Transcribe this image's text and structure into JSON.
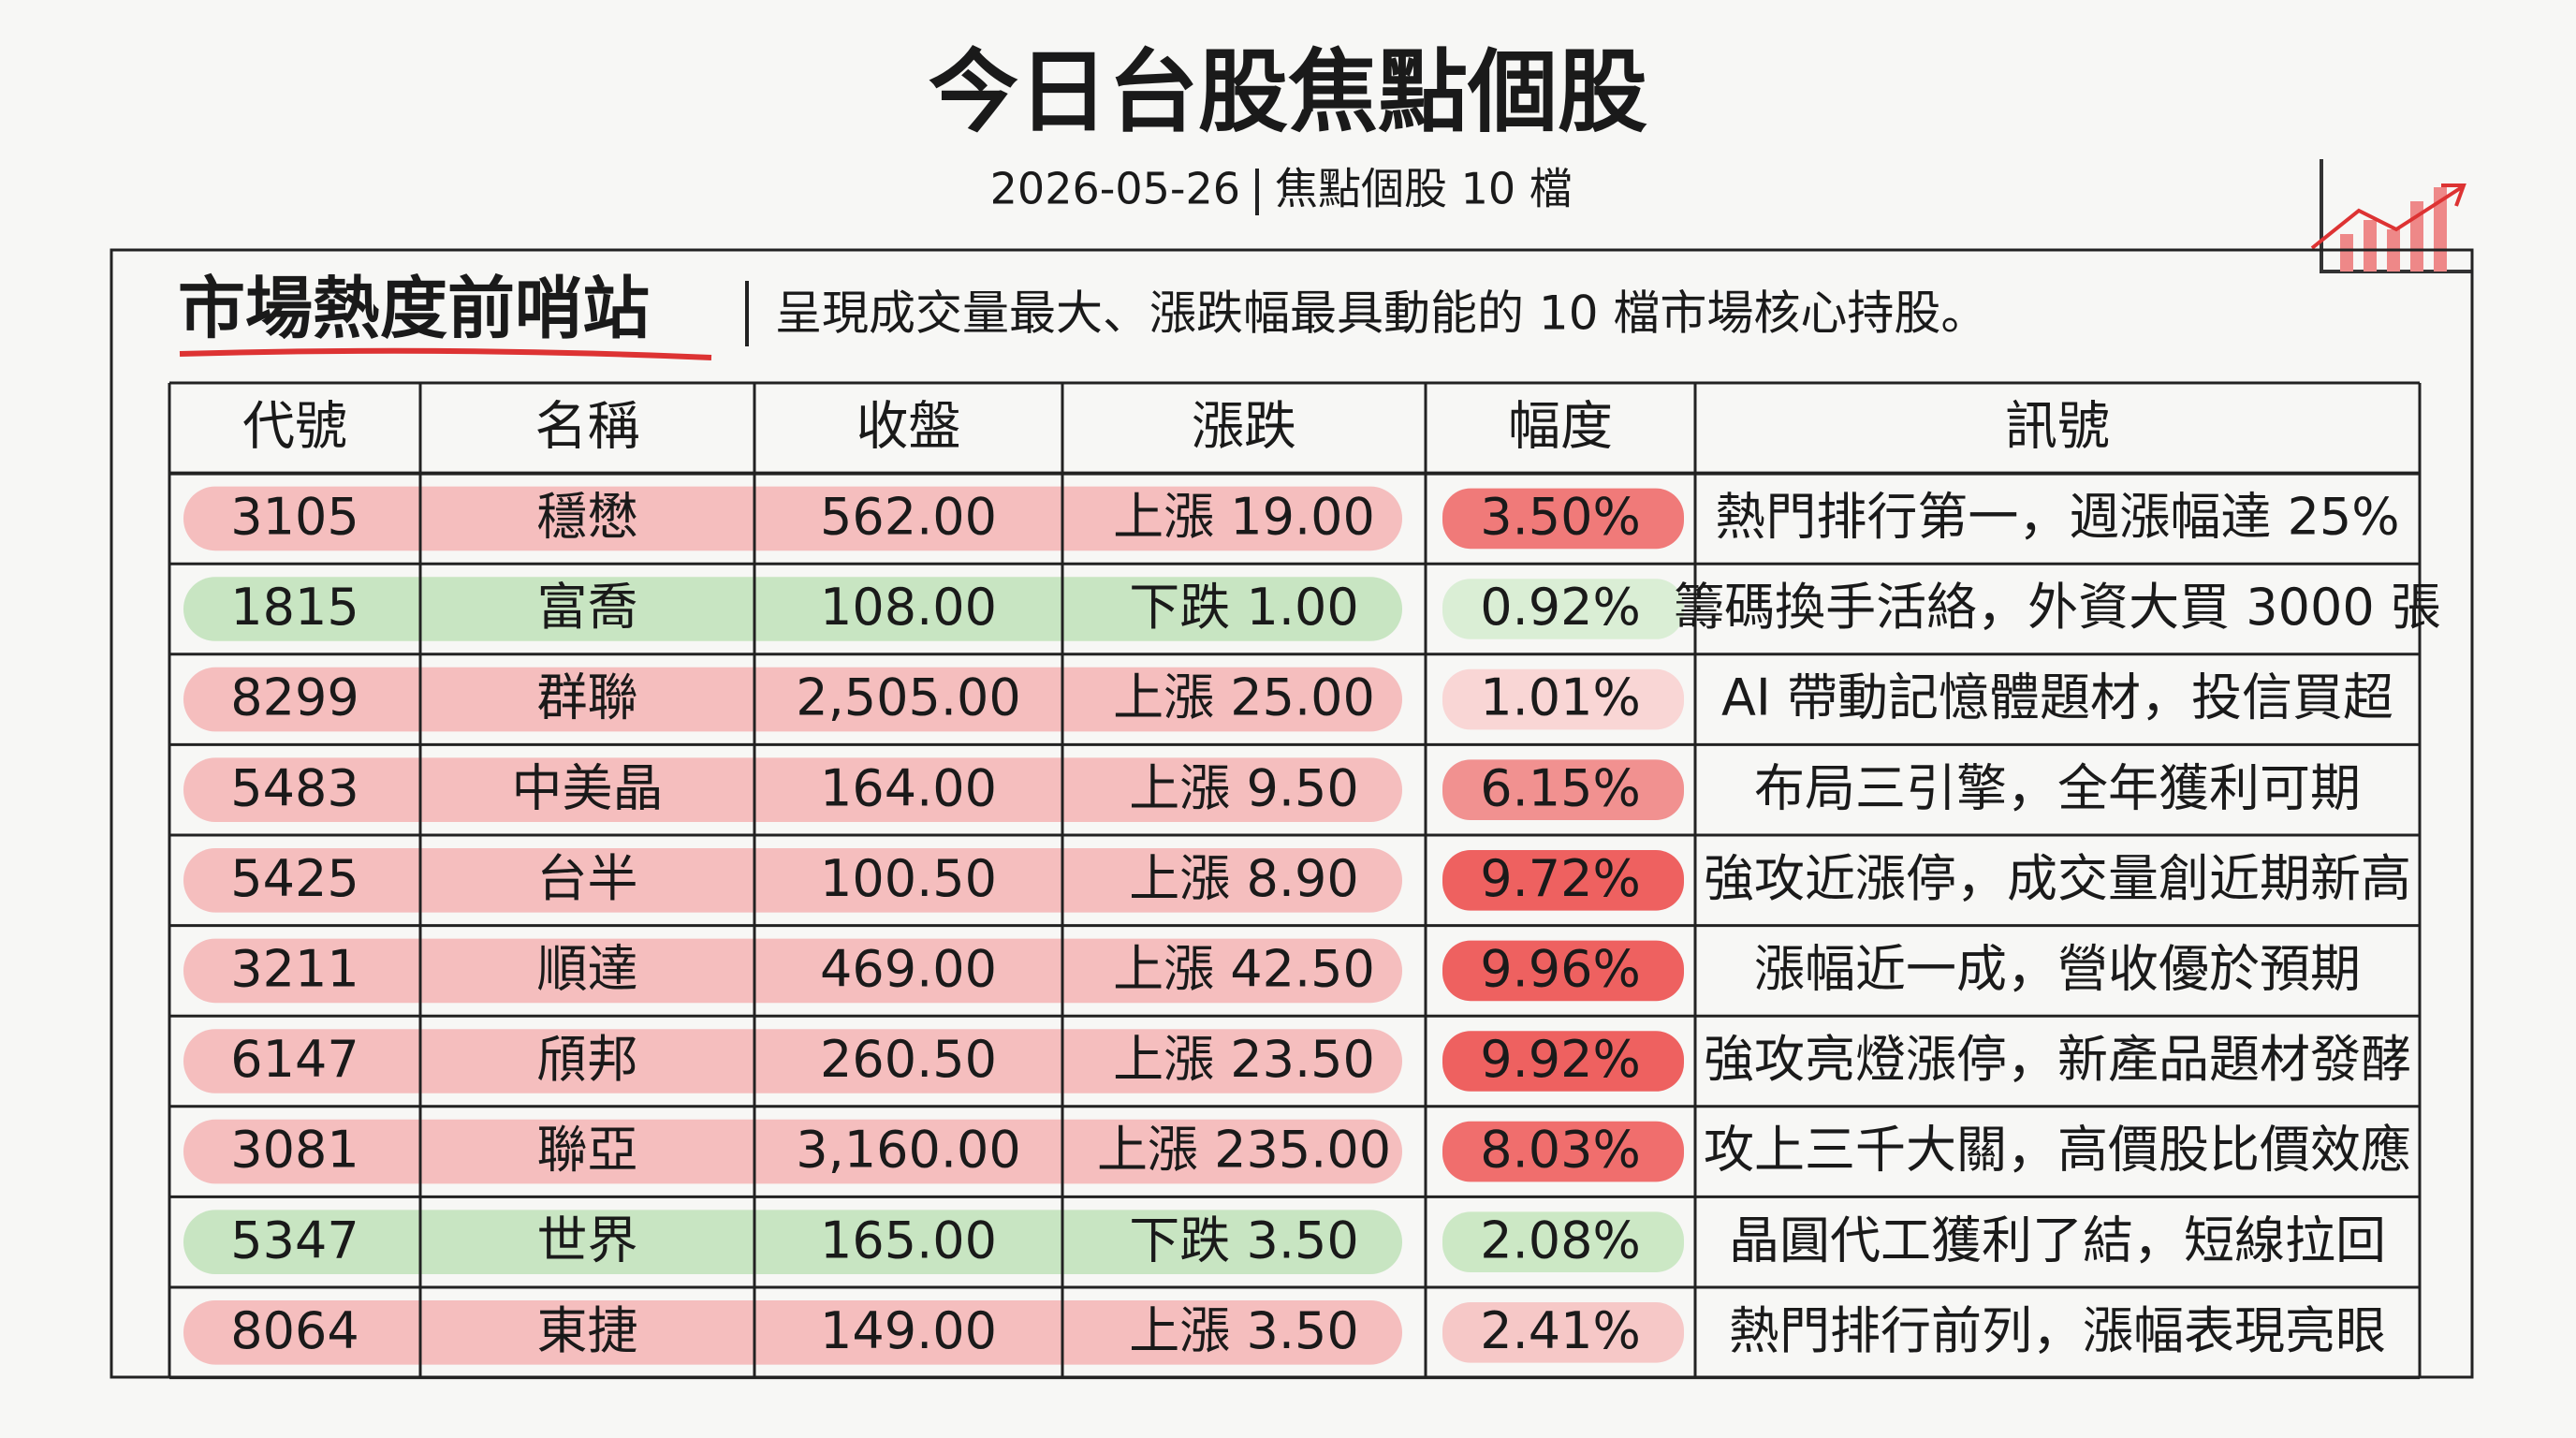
{
  "header": {
    "title": "今日台股焦點個股",
    "date": "2026-05-26",
    "subtitle": "焦點個股 10 檔"
  },
  "section": {
    "title": "市場熱度前哨站",
    "description": "呈現成交量最大、漲跌幅最具動能的 10 檔市場核心持股。"
  },
  "table": {
    "columns": [
      "代號",
      "名稱",
      "收盤",
      "漲跌",
      "幅度",
      "訊號"
    ],
    "rows": [
      [
        "3105",
        "穩懋",
        "562.00",
        "上漲 19.00",
        "3.50%",
        "熱門排行第一，週漲幅達 25%"
      ],
      [
        "1815",
        "富喬",
        "108.00",
        "下跌 1.00",
        "0.92%",
        "籌碼換手活絡，外資大買 3000 張"
      ],
      [
        "8299",
        "群聯",
        "2,505.00",
        "上漲 25.00",
        "1.01%",
        "AI 帶動記憶體題材，投信買超"
      ],
      [
        "5483",
        "中美晶",
        "164.00",
        "上漲 9.50",
        "6.15%",
        "布局三引擎，全年獲利可期"
      ],
      [
        "5425",
        "台半",
        "100.50",
        "上漲 8.90",
        "9.72%",
        "強攻近漲停，成交量創近期新高"
      ],
      [
        "3211",
        "順達",
        "469.00",
        "上漲 42.50",
        "9.96%",
        "漲幅近一成，營收優於預期"
      ],
      [
        "6147",
        "頎邦",
        "260.50",
        "上漲 23.50",
        "9.92%",
        "強攻亮燈漲停，新產品題材發酵"
      ],
      [
        "3081",
        "聯亞",
        "3,160.00",
        "上漲 235.00",
        "8.03%",
        "攻上三千大關，高價股比價效應"
      ],
      [
        "5347",
        "世界",
        "165.00",
        "下跌 3.50",
        "2.08%",
        "晶圓代工獲利了結，短線拉回"
      ],
      [
        "8064",
        "東捷",
        "149.00",
        "上漲 3.50",
        "2.41%",
        "熱門排行前列，漲幅表現亮眼"
      ]
    ],
    "row_colors": [
      "#f4b4b4",
      "#bfe2b8",
      "#f4b4b4",
      "#f4b4b4",
      "#f4b4b4",
      "#f4b4b4",
      "#f4b4b4",
      "#f4b4b4",
      "#bfe2b8",
      "#f4b4b4"
    ],
    "pct_colors": [
      "#ee6b6b",
      "#d6ecd1",
      "#f8d2d2",
      "#f08585",
      "#ec5050",
      "#ec5050",
      "#ec5050",
      "#ee5e5e",
      "#c6e6c0",
      "#f5c2c2"
    ]
  }
}
